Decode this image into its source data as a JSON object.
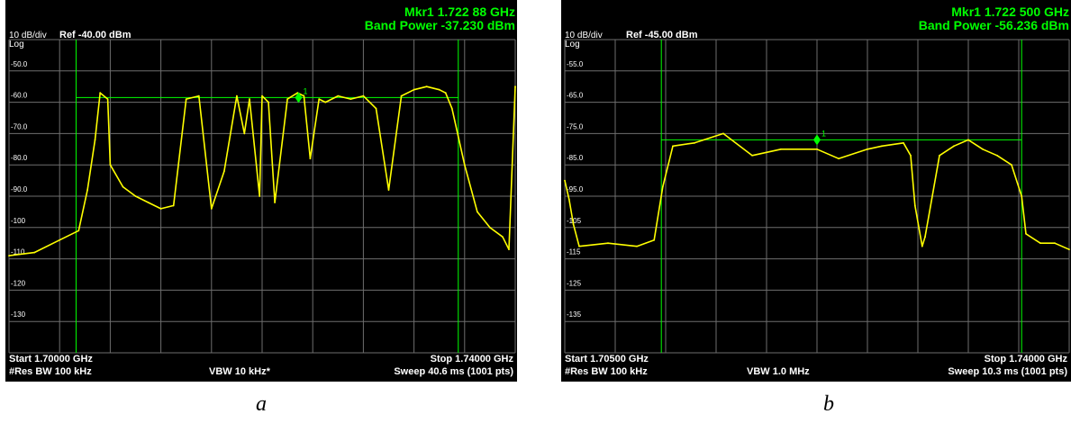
{
  "panels": [
    {
      "caption": "a",
      "scale_label": "10 dB/div",
      "log_label": "Log",
      "ref_label": "Ref -40.00 dBm",
      "marker_line1": "Mkr1 1.722 88 GHz",
      "marker_line2": "Band Power -37.230 dBm",
      "marker_tag": "1",
      "start_label": "Start 1.70000 GHz",
      "stop_label": "Stop 1.74000 GHz",
      "rbw_label": "#Res BW 100 kHz",
      "vbw_label": "VBW 10 kHz*",
      "sweep_label": "Sweep  40.6 ms (1001 pts)"
    },
    {
      "caption": "b",
      "scale_label": "10 dB/div",
      "log_label": "Log",
      "ref_label": "Ref -45.00 dBm",
      "marker_line1": "Mkr1 1.722 500 GHz",
      "marker_line2": "Band Power -56.236 dBm",
      "marker_tag": "1",
      "start_label": "Start 1.70500 GHz",
      "stop_label": "Stop 1.74000 GHz",
      "rbw_label": "#Res BW 100 kHz",
      "vbw_label": "VBW 1.0 MHz",
      "sweep_label": "Sweep  10.3 ms (1001 pts)"
    }
  ],
  "chart_data": [
    {
      "type": "line",
      "trace_color": "#ffff00",
      "marker_color": "#00ff00",
      "x_unit": "GHz",
      "y_unit": "dBm",
      "xlim": [
        1.7,
        1.74
      ],
      "ylim": [
        -140,
        -40
      ],
      "y_ticks": [
        -50.0,
        -60.0,
        -70.0,
        -80.0,
        -90.0,
        -100,
        -110,
        -120,
        -130
      ],
      "y_tick_labels": [
        "-50.0",
        "-60.0",
        "-70.0",
        "-80.0",
        "-90.0",
        "-100",
        "-110",
        "-120",
        "-130"
      ],
      "band_edges": [
        1.7053,
        1.7355
      ],
      "band_power_level": -58.5,
      "marker": {
        "x": 1.72288,
        "y": -58.5
      },
      "grid": true,
      "x": [
        1.7,
        1.702,
        1.704,
        1.7055,
        1.7062,
        1.7068,
        1.7072,
        1.7078,
        1.708,
        1.709,
        1.71,
        1.711,
        1.712,
        1.713,
        1.714,
        1.715,
        1.716,
        1.717,
        1.718,
        1.7186,
        1.719,
        1.7198,
        1.72,
        1.7205,
        1.721,
        1.722,
        1.7228,
        1.7233,
        1.7238,
        1.7245,
        1.725,
        1.726,
        1.727,
        1.728,
        1.729,
        1.73,
        1.731,
        1.732,
        1.733,
        1.734,
        1.7345,
        1.735,
        1.736,
        1.737,
        1.738,
        1.739,
        1.7395,
        1.74
      ],
      "y": [
        -109,
        -108,
        -104,
        -101,
        -88,
        -72,
        -57,
        -59,
        -80,
        -87,
        -90,
        -92,
        -94,
        -93,
        -59,
        -58,
        -94,
        -82,
        -58,
        -70,
        -59,
        -90,
        -58,
        -60,
        -92,
        -59,
        -57,
        -58,
        -78,
        -59,
        -60,
        -58,
        -59,
        -58,
        -62,
        -88,
        -58,
        -56,
        -55,
        -56,
        -57,
        -62,
        -80,
        -95,
        -100,
        -103,
        -107,
        -55
      ]
    },
    {
      "type": "line",
      "trace_color": "#ffff00",
      "marker_color": "#00ff00",
      "x_unit": "GHz",
      "y_unit": "dBm",
      "xlim": [
        1.705,
        1.74
      ],
      "ylim": [
        -145,
        -45
      ],
      "y_ticks": [
        -55.0,
        -65.0,
        -75.0,
        -85.0,
        -95.0,
        -105,
        -115,
        -125,
        -135
      ],
      "y_tick_labels": [
        "-55.0",
        "-65.0",
        "-75.0",
        "-85.0",
        "-95.0",
        "-105",
        "-115",
        "-125",
        "-135"
      ],
      "band_edges": [
        1.7117,
        1.7367
      ],
      "band_power_level": -77.0,
      "marker": {
        "x": 1.7225,
        "y": -77.0
      },
      "grid": true,
      "x": [
        1.705,
        1.7053,
        1.7056,
        1.706,
        1.708,
        1.71,
        1.7112,
        1.7118,
        1.7125,
        1.714,
        1.716,
        1.718,
        1.72,
        1.7225,
        1.724,
        1.726,
        1.727,
        1.7285,
        1.729,
        1.7293,
        1.7298,
        1.73,
        1.731,
        1.732,
        1.733,
        1.734,
        1.735,
        1.736,
        1.7367,
        1.737,
        1.738,
        1.739,
        1.74
      ],
      "y": [
        -90,
        -96,
        -104,
        -111,
        -110,
        -111,
        -109,
        -92,
        -79,
        -78,
        -75,
        -82,
        -80,
        -80,
        -83,
        -80,
        -79,
        -78,
        -82,
        -98,
        -111,
        -108,
        -82,
        -79,
        -77,
        -80,
        -82,
        -85,
        -95,
        -107,
        -110,
        -110,
        -112
      ]
    }
  ]
}
